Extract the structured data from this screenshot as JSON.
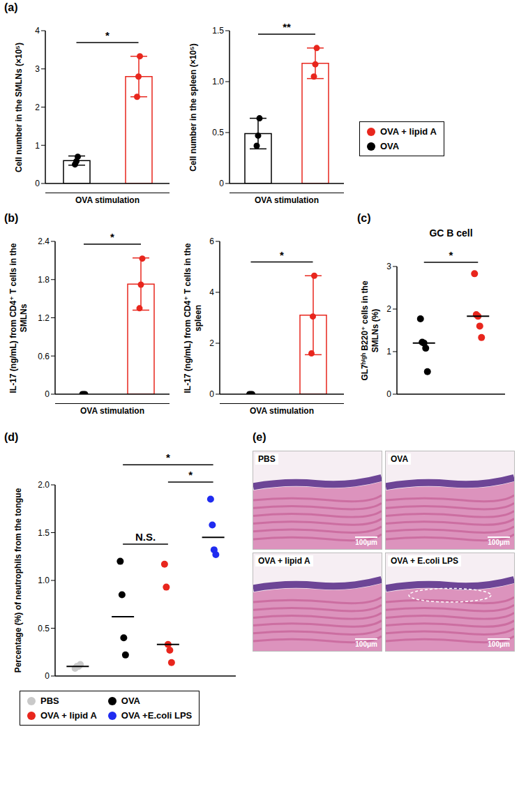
{
  "chart_data": [
    {
      "panel": "(a)",
      "type": "bar",
      "x_label": "OVA stimulation",
      "y_label": "Cell number in the SMLNs (×10⁵)",
      "ylim": [
        0,
        4
      ],
      "yticks": [
        0,
        1,
        2,
        3,
        4
      ],
      "series": [
        {
          "name": "OVA",
          "color": "#000000",
          "value": 0.6,
          "error": 0.12,
          "points": [
            0.5,
            0.58,
            0.7
          ]
        },
        {
          "name": "OVA + lipid A",
          "color": "#e8261d",
          "value": 2.8,
          "error": 0.53,
          "points": [
            2.27,
            2.8,
            3.33
          ]
        }
      ],
      "annotations": [
        {
          "text": "*",
          "between": [
            "OVA",
            "OVA + lipid A"
          ]
        }
      ],
      "legend": "right",
      "legend_entries": [
        {
          "name": "OVA + lipid A",
          "color": "#e8261d"
        },
        {
          "name": "OVA",
          "color": "#000000"
        }
      ]
    },
    {
      "type": "bar",
      "x_label": "OVA stimulation",
      "y_label": "Cell number in the spleen (×10⁵)",
      "ylim": [
        0,
        1.5
      ],
      "yticks": [
        0,
        0.5,
        {
          "value": 1,
          "label": "1.0"
        },
        1.5
      ],
      "series": [
        {
          "name": "OVA",
          "color": "#000000",
          "value": 0.49,
          "error": 0.15,
          "points": [
            0.37,
            0.47,
            0.64
          ]
        },
        {
          "name": "OVA + lipid A",
          "color": "#e8261d",
          "value": 1.18,
          "error": 0.15,
          "points": [
            1.05,
            1.17,
            1.33
          ]
        }
      ],
      "annotations": [
        {
          "text": "**",
          "between": [
            "OVA",
            "OVA + lipid A"
          ]
        }
      ]
    },
    {
      "panel": "(b)",
      "type": "bar",
      "x_label": "OVA stimulation",
      "y_label": "IL-17 (ng/mL) from CD4⁺ T cells in the SMLNs",
      "ylim": [
        0,
        2.4
      ],
      "yticks": [
        0,
        0.6,
        1.2,
        1.8,
        2.4
      ],
      "series": [
        {
          "name": "OVA",
          "color": "#000000",
          "value": 0,
          "error": 0,
          "points": [
            0,
            0,
            0
          ]
        },
        {
          "name": "OVA + lipid A",
          "color": "#e8261d",
          "value": 1.73,
          "error": 0.41,
          "points": [
            1.35,
            1.72,
            2.13
          ]
        }
      ],
      "annotations": [
        {
          "text": "*",
          "between": [
            "OVA",
            "OVA + lipid A"
          ]
        }
      ]
    },
    {
      "type": "bar",
      "x_label": "OVA stimulation",
      "y_label": "IL-17 (ng/mL) from CD4⁺ T cells in the spleen",
      "ylim": [
        0,
        6
      ],
      "yticks": [
        0,
        2,
        4,
        6
      ],
      "series": [
        {
          "name": "OVA",
          "color": "#000000",
          "value": 0,
          "error": 0,
          "points": [
            0,
            0,
            0
          ]
        },
        {
          "name": "OVA + lipid A",
          "color": "#e8261d",
          "value": 3.1,
          "error": 1.55,
          "points": [
            1.6,
            3.05,
            4.65
          ]
        }
      ],
      "annotations": [
        {
          "text": "*",
          "between": [
            "OVA",
            "OVA + lipid A"
          ]
        }
      ]
    },
    {
      "panel": "(c)",
      "type": "scatter",
      "title": "GC B cell",
      "y_label": "GL7ʰⁱᵍʰ B220⁺ cells in the SMLNs (%)",
      "ylim": [
        0,
        3
      ],
      "yticks": [
        0,
        1,
        2,
        3
      ],
      "series": [
        {
          "name": "OVA",
          "color": "#000000",
          "median": 1.2,
          "points": [
            1.77,
            1.22,
            1.2,
            1.08,
            0.53
          ]
        },
        {
          "name": "OVA + lipid A",
          "color": "#e8261d",
          "median": 1.83,
          "points": [
            2.83,
            1.87,
            1.83,
            1.6,
            1.33
          ]
        }
      ],
      "annotations": [
        {
          "text": "*",
          "between": [
            "OVA",
            "OVA + lipid A"
          ]
        }
      ]
    },
    {
      "panel": "(d)",
      "type": "scatter",
      "y_label": "Percentage (%) of neutrophils from the tongue",
      "ylim": [
        0,
        2
      ],
      "yticks": [
        0,
        0.5,
        {
          "value": 1,
          "label": "1.0"
        },
        1.5,
        {
          "value": 2,
          "label": "2.0"
        }
      ],
      "series": [
        {
          "name": "PBS",
          "color": "#c9c9c9",
          "median": 0.1,
          "points": [
            0.08,
            0.1,
            0.1,
            0.12
          ]
        },
        {
          "name": "OVA",
          "color": "#000000",
          "median": 0.62,
          "points": [
            1.2,
            0.85,
            0.4,
            0.22
          ]
        },
        {
          "name": "OVA + lipid A",
          "color": "#e8261d",
          "median": 0.33,
          "points": [
            1.17,
            0.93,
            0.33,
            0.27,
            0.14
          ]
        },
        {
          "name": "OVA +E.coli LPS",
          "color": "#1f2bf0",
          "median": 1.45,
          "points": [
            1.85,
            1.58,
            1.32,
            1.27
          ]
        }
      ],
      "annotations": [
        {
          "text": "N.S.",
          "between": [
            "OVA",
            "OVA + lipid A"
          ]
        },
        {
          "text": "*",
          "between": [
            "OVA + lipid A",
            "OVA +E.coli LPS"
          ]
        },
        {
          "text": "*",
          "between": [
            "OVA",
            "OVA +E.coli LPS"
          ]
        }
      ],
      "legend": "bottom",
      "legend_entries": [
        {
          "name": "PBS",
          "color": "#c9c9c9"
        },
        {
          "name": "OVA",
          "color": "#000000"
        },
        {
          "name": "OVA + lipid A",
          "color": "#e8261d"
        },
        {
          "name": "OVA +E.coli LPS",
          "color": "#1f2bf0"
        }
      ]
    }
  ],
  "images": {
    "panel": "(e)",
    "items": [
      {
        "label": "PBS",
        "scale_bar": "100μm"
      },
      {
        "label": "OVA",
        "scale_bar": "100μm"
      },
      {
        "label": "OVA + lipid A",
        "scale_bar": "100μm"
      },
      {
        "label": "OVA + E.coli LPS",
        "scale_bar": "100μm"
      }
    ]
  }
}
